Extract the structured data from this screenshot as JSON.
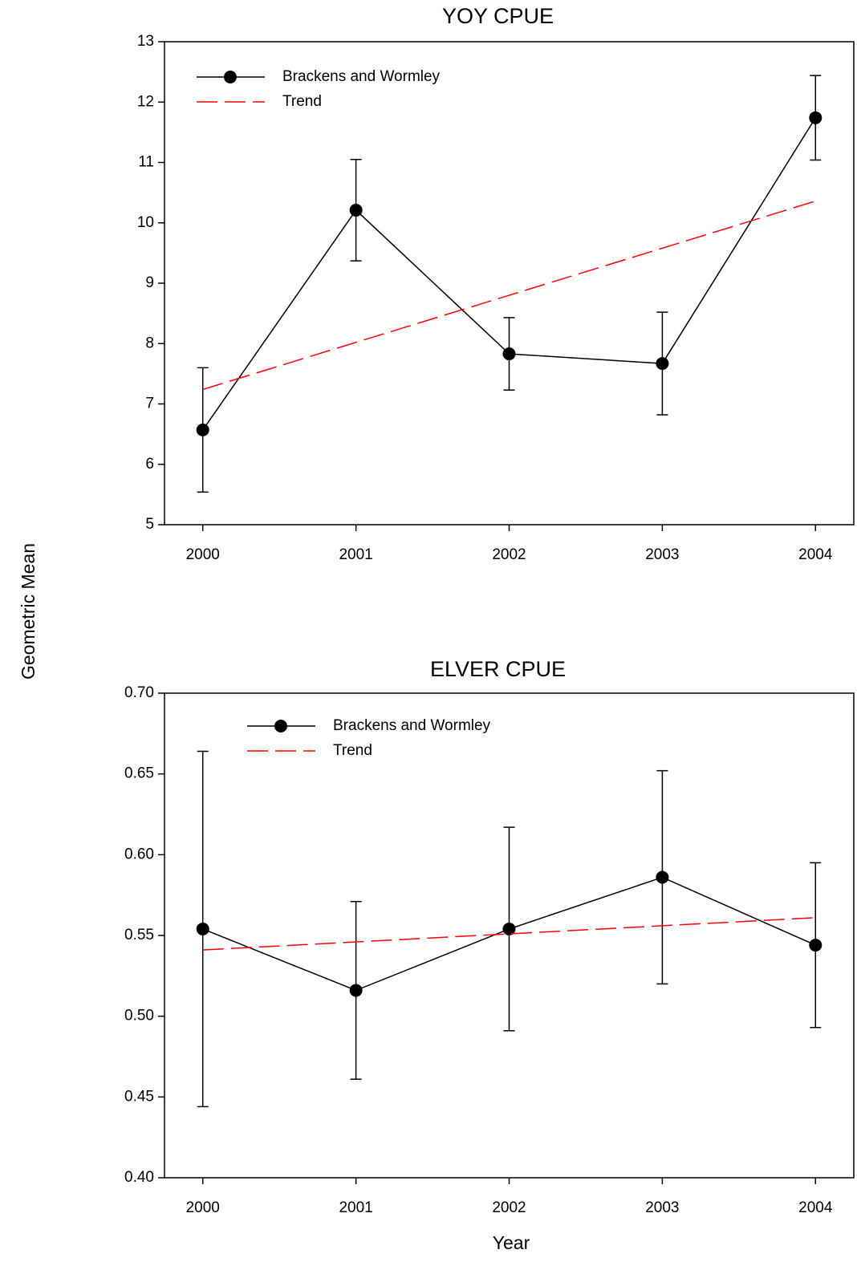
{
  "y_label": "Geometric Mean",
  "x_label": "Year",
  "chart_data": [
    {
      "type": "line",
      "title": "YOY CPUE",
      "x": [
        2000,
        2001,
        2002,
        2003,
        2004
      ],
      "xlim": [
        1999.75,
        2004.25
      ],
      "xticks": [
        2000,
        2001,
        2002,
        2003,
        2004
      ],
      "ylim": [
        5,
        13
      ],
      "yticks": [
        5,
        6,
        7,
        8,
        9,
        10,
        11,
        12,
        13
      ],
      "legend": "upper left",
      "series": [
        {
          "name": "Brackens and Wormley",
          "color": "#000000",
          "marker": "circle",
          "values": [
            6.57,
            10.21,
            7.83,
            7.67,
            11.74
          ],
          "errors": [
            1.03,
            0.84,
            0.6,
            0.85,
            0.7
          ]
        },
        {
          "name": "Trend",
          "color": "#ff0000",
          "dashed": true,
          "values": [
            7.24,
            8.02,
            8.8,
            9.58,
            10.36
          ]
        }
      ]
    },
    {
      "type": "line",
      "title": "ELVER CPUE",
      "x": [
        2000,
        2001,
        2002,
        2003,
        2004
      ],
      "xlim": [
        1999.75,
        2004.25
      ],
      "xticks": [
        2000,
        2001,
        2002,
        2003,
        2004
      ],
      "ylim": [
        0.4,
        0.7
      ],
      "yticks": [
        {
          "value": 0.4,
          "label": "0.40"
        },
        0.45,
        {
          "value": 0.5,
          "label": "0.50"
        },
        0.55,
        {
          "value": 0.6,
          "label": "0.60"
        },
        0.65,
        {
          "value": 0.7,
          "label": "0.70"
        }
      ],
      "legend": "upper left",
      "series": [
        {
          "name": "Brackens and Wormley",
          "color": "#000000",
          "marker": "circle",
          "values": [
            0.554,
            0.516,
            0.554,
            0.586,
            0.544
          ],
          "errors": [
            0.11,
            0.055,
            0.063,
            0.066,
            0.051
          ]
        },
        {
          "name": "Trend",
          "color": "#ff0000",
          "dashed": true,
          "values": [
            0.541,
            0.546,
            0.551,
            0.556,
            0.561
          ]
        }
      ]
    }
  ]
}
